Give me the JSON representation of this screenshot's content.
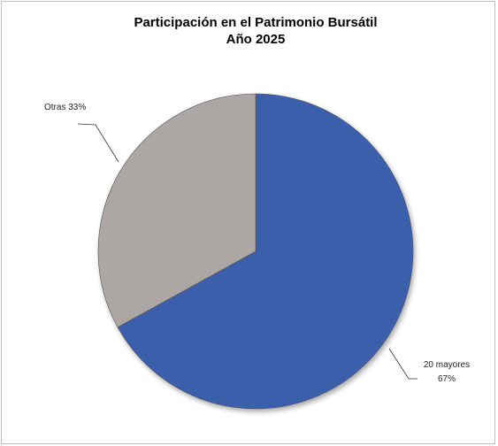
{
  "chart_data": {
    "type": "pie",
    "title": "Participación en el Patrimonio Bursátil",
    "subtitle": "Año 2025",
    "categories": [
      "20 mayores",
      "Otras"
    ],
    "values": [
      67,
      33
    ],
    "value_labels": [
      "67%",
      "33%"
    ],
    "colors": [
      "#3b5fab",
      "#aca7a4"
    ]
  }
}
